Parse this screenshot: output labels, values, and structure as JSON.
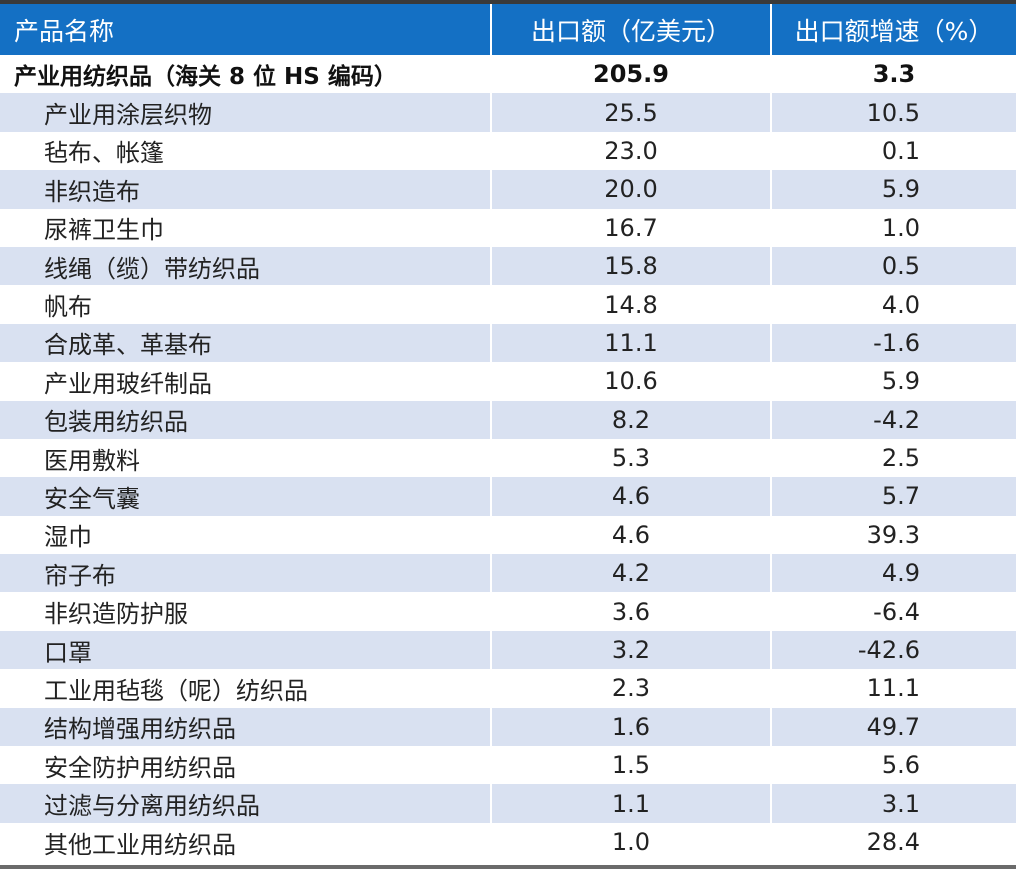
{
  "table": {
    "headers": [
      "产品名称",
      "出口额（亿美元）",
      "出口额增速（%）"
    ],
    "total": {
      "name": "产业用纺织品（海关 8 位 HS 编码）",
      "export": "205.9",
      "growth": "3.3"
    },
    "rows": [
      {
        "name": "产业用涂层织物",
        "export": "25.5",
        "growth": "10.5"
      },
      {
        "name": "毡布、帐篷",
        "export": "23.0",
        "growth": "0.1"
      },
      {
        "name": "非织造布",
        "export": "20.0",
        "growth": "5.9"
      },
      {
        "name": "尿裤卫生巾",
        "export": "16.7",
        "growth": "1.0"
      },
      {
        "name": "线绳（缆）带纺织品",
        "export": "15.8",
        "growth": "0.5"
      },
      {
        "name": "帆布",
        "export": "14.8",
        "growth": "4.0"
      },
      {
        "name": "合成革、革基布",
        "export": "11.1",
        "growth": "-1.6"
      },
      {
        "name": "产业用玻纤制品",
        "export": "10.6",
        "growth": "5.9"
      },
      {
        "name": "包装用纺织品",
        "export": "8.2",
        "growth": "-4.2"
      },
      {
        "name": "医用敷料",
        "export": "5.3",
        "growth": "2.5"
      },
      {
        "name": "安全气囊",
        "export": "4.6",
        "growth": "5.7"
      },
      {
        "name": "湿巾",
        "export": "4.6",
        "growth": "39.3"
      },
      {
        "name": "帘子布",
        "export": "4.2",
        "growth": "4.9"
      },
      {
        "name": "非织造防护服",
        "export": "3.6",
        "growth": "-6.4"
      },
      {
        "name": "口罩",
        "export": "3.2",
        "growth": "-42.6"
      },
      {
        "name": "工业用毡毯（呢）纺织品",
        "export": "2.3",
        "growth": "11.1"
      },
      {
        "name": "结构增强用纺织品",
        "export": "1.6",
        "growth": "49.7"
      },
      {
        "name": "安全防护用纺织品",
        "export": "1.5",
        "growth": "5.6"
      },
      {
        "name": "过滤与分离用纺织品",
        "export": "1.1",
        "growth": "3.1"
      },
      {
        "name": "其他工业用纺织品",
        "export": "1.0",
        "growth": "28.4"
      }
    ]
  },
  "colors": {
    "header_bg": "#1470c4",
    "header_text": "#ffffff",
    "alt_row_bg": "#d9e1f1"
  }
}
